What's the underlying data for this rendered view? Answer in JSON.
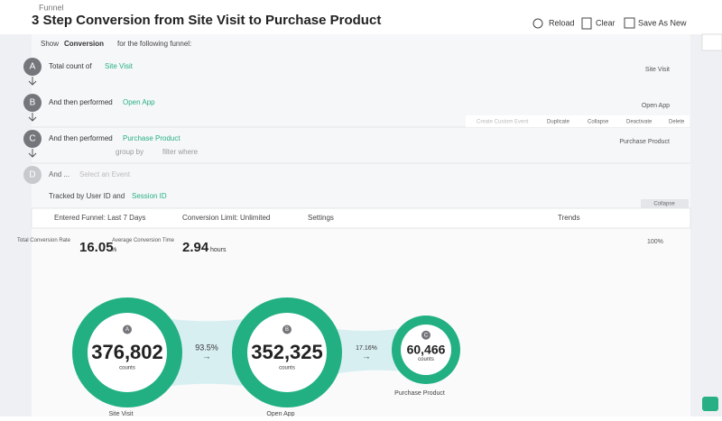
{
  "header": {
    "breadcrumb": "Funnel",
    "title": "3 Step Conversion from Site Visit to Purchase Product",
    "actions": [
      "Reload",
      "Clear",
      "Save As New"
    ]
  },
  "show_row": {
    "prefix": "Show",
    "mode": "Conversion",
    "suffix": "for the following funnel:"
  },
  "steps": [
    {
      "letter": "A",
      "lead": "Total count of",
      "event": "Site Visit",
      "label": "Site Visit"
    },
    {
      "letter": "B",
      "lead": "And then performed",
      "event": "Open App",
      "label": "Open App"
    },
    {
      "letter": "C",
      "lead": "And then performed",
      "event": "Purchase Product",
      "label": "Purchase Product"
    },
    {
      "letter": "D",
      "lead": "And ...",
      "event": "Select an Event"
    }
  ],
  "step_actions": [
    "Create Custom Event",
    "Duplicate",
    "Collapse",
    "Deactivate",
    "Delete"
  ],
  "step_options": [
    "group by",
    "filter where"
  ],
  "tracked": {
    "text": "Tracked by User ID and",
    "key": "Session ID"
  },
  "collapse": "Collapse",
  "controls": [
    "Entered Funnel: Last 7 Days",
    "Conversion Limit: Unlimited",
    "Settings",
    "Trends"
  ],
  "metrics": [
    {
      "label": "Total Conversion Rate",
      "value": "16.05",
      "unit": "%"
    },
    {
      "label": "Average Conversion Time",
      "value": "2.94",
      "unit": "hours"
    }
  ],
  "zoom": "100%",
  "funnel": [
    {
      "letter": "A",
      "count": "376,802",
      "unit": "counts",
      "name": "Site Visit"
    },
    {
      "letter": "B",
      "count": "352,325",
      "unit": "counts",
      "name": "Open App"
    },
    {
      "letter": "C",
      "count": "60,466",
      "unit": "counts",
      "name": "Purchase Product"
    }
  ],
  "rates": [
    "93.5%",
    "17.16%"
  ]
}
